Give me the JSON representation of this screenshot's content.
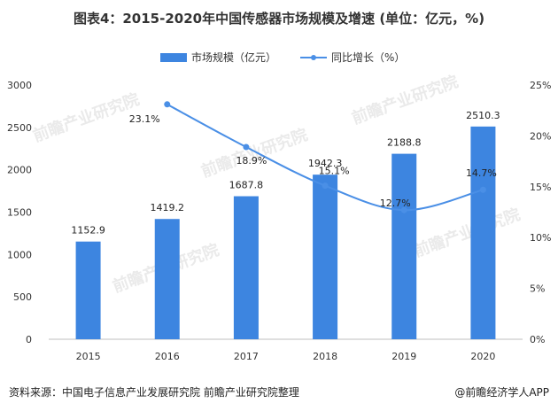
{
  "title": "图表4：2015-2020年中国传感器市场规模及增速 (单位：亿元，%)",
  "legend": {
    "bar_label": "市场规模（亿元）",
    "line_label": "同比增长（%）"
  },
  "watermark": "前瞻产业研究院",
  "footer": {
    "source": "资料来源：中国电子信息产业发展研究院 前瞻产业研究院整理",
    "brand": "@前瞻经济学人APP"
  },
  "colors": {
    "bar": "#3d85e0",
    "line": "#4a8fe6"
  },
  "chart_data": {
    "type": "bar",
    "categories": [
      "2015",
      "2016",
      "2017",
      "2018",
      "2019",
      "2020"
    ],
    "series": [
      {
        "name": "市场规模（亿元）",
        "type": "bar",
        "axis": "left",
        "values": [
          1152.9,
          1419.2,
          1687.8,
          1942.3,
          2188.8,
          2510.3
        ],
        "labels": [
          "1152.9",
          "1419.2",
          "1687.8",
          "1942.3",
          "2188.8",
          "2510.3"
        ]
      },
      {
        "name": "同比增长（%）",
        "type": "line",
        "axis": "right",
        "values": [
          null,
          23.1,
          18.9,
          15.1,
          12.7,
          14.7
        ],
        "labels": [
          "",
          "23.1%",
          "18.9%",
          "15.1%",
          "12.7%",
          "14.7%"
        ]
      }
    ],
    "ylim_left": [
      0,
      3000
    ],
    "yticks_left": [
      0,
      500,
      1000,
      1500,
      2000,
      2500,
      3000
    ],
    "yticks_left_labels": [
      "0",
      "500",
      "1000",
      "1500",
      "2000",
      "2500",
      "3000"
    ],
    "ylim_right": [
      0,
      25
    ],
    "yticks_right": [
      0,
      5,
      10,
      15,
      20,
      25
    ],
    "yticks_right_labels": [
      "0%",
      "5%",
      "10%",
      "15%",
      "20%",
      "25%"
    ],
    "legend_position": "top-center",
    "grid": false
  }
}
